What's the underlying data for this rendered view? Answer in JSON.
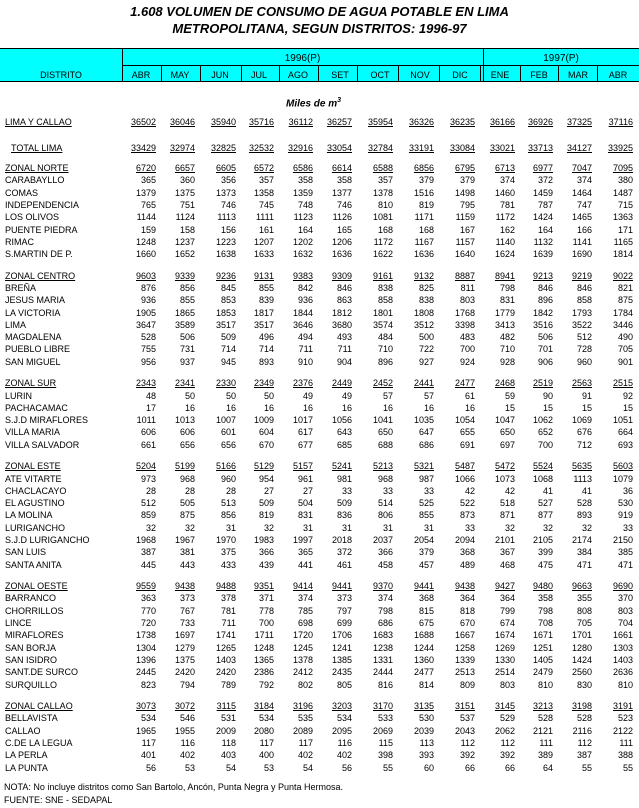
{
  "title": {
    "line1": "1.608 VOLUMEN DE CONSUMO DE AGUA POTABLE EN LIMA",
    "line2": "METROPOLITANA, SEGUN DISTRITOS: 1996-97"
  },
  "header": {
    "district": "DISTRITO",
    "year_1996": "1996(P)",
    "year_1997": "1997(P)",
    "months_1996": [
      "ABR",
      "MAY",
      "JUN",
      "JUL",
      "AGO",
      "SET",
      "OCT",
      "NOV",
      "DIC"
    ],
    "months_1997": [
      "ENE",
      "FEB",
      "MAR",
      "ABR"
    ]
  },
  "unit": {
    "text": "Miles de m",
    "superscript": "3"
  },
  "lima_callao": {
    "label": "LIMA  Y  CALLAO",
    "values": [
      36502,
      36046,
      35940,
      35716,
      36112,
      36257,
      35954,
      36326,
      36235,
      36166,
      36926,
      37325,
      37116
    ]
  },
  "total_lima": {
    "label": "TOTAL LIMA",
    "values": [
      33429,
      32974,
      32825,
      32532,
      32916,
      33054,
      32784,
      33191,
      33084,
      33021,
      33713,
      34127,
      33925
    ]
  },
  "groups": [
    {
      "name": "ZONAL NORTE",
      "values": [
        6720,
        6657,
        6605,
        6572,
        6586,
        6614,
        6588,
        6856,
        6795,
        6713,
        6977,
        7047,
        7095
      ],
      "rows": [
        {
          "label": "CARABAYLLO",
          "values": [
            365,
            360,
            356,
            357,
            358,
            358,
            357,
            379,
            379,
            374,
            372,
            374,
            380
          ]
        },
        {
          "label": "COMAS",
          "values": [
            1379,
            1375,
            1373,
            1358,
            1359,
            1377,
            1378,
            1516,
            1498,
            1460,
            1459,
            1464,
            1487
          ]
        },
        {
          "label": "INDEPENDENCIA",
          "values": [
            765,
            751,
            746,
            745,
            748,
            746,
            810,
            819,
            795,
            781,
            787,
            747,
            715
          ]
        },
        {
          "label": "LOS OLIVOS",
          "values": [
            1144,
            1124,
            1113,
            1111,
            1123,
            1126,
            1081,
            1171,
            1159,
            1172,
            1424,
            1465,
            1363
          ]
        },
        {
          "label": "PUENTE PIEDRA",
          "values": [
            159,
            158,
            156,
            161,
            164,
            165,
            168,
            168,
            167,
            162,
            164,
            166,
            171
          ]
        },
        {
          "label": "RIMAC",
          "values": [
            1248,
            1237,
            1223,
            1207,
            1202,
            1206,
            1172,
            1167,
            1157,
            1140,
            1132,
            1141,
            1165
          ]
        },
        {
          "label": "S.MARTIN DE P.",
          "values": [
            1660,
            1652,
            1638,
            1633,
            1632,
            1636,
            1622,
            1636,
            1640,
            1624,
            1639,
            1690,
            1814
          ]
        }
      ]
    },
    {
      "name": "ZONAL CENTRO",
      "values": [
        9603,
        9339,
        9236,
        9131,
        9383,
        9309,
        9161,
        9132,
        8887,
        8941,
        9213,
        9219,
        9022
      ],
      "rows": [
        {
          "label": "BREÑA",
          "values": [
            876,
            856,
            845,
            855,
            842,
            846,
            838,
            825,
            811,
            798,
            846,
            846,
            821
          ]
        },
        {
          "label": "JESUS MARIA",
          "values": [
            936,
            855,
            853,
            839,
            936,
            863,
            858,
            838,
            803,
            831,
            896,
            858,
            875
          ]
        },
        {
          "label": "LA VICTORIA",
          "values": [
            1905,
            1865,
            1853,
            1817,
            1844,
            1812,
            1801,
            1808,
            1768,
            1779,
            1842,
            1793,
            1784
          ]
        },
        {
          "label": "LIMA",
          "values": [
            3647,
            3589,
            3517,
            3517,
            3646,
            3680,
            3574,
            3512,
            3398,
            3413,
            3516,
            3522,
            3446
          ]
        },
        {
          "label": "MAGDALENA",
          "values": [
            528,
            506,
            509,
            496,
            494,
            493,
            484,
            500,
            483,
            482,
            506,
            512,
            490
          ]
        },
        {
          "label": "PUEBLO LIBRE",
          "values": [
            755,
            731,
            714,
            714,
            711,
            711,
            710,
            722,
            700,
            710,
            701,
            728,
            705
          ]
        },
        {
          "label": "SAN MIGUEL",
          "values": [
            956,
            937,
            945,
            893,
            910,
            904,
            896,
            927,
            924,
            928,
            906,
            960,
            901
          ]
        }
      ]
    },
    {
      "name": "ZONAL SUR",
      "values": [
        2343,
        2341,
        2330,
        2349,
        2376,
        2449,
        2452,
        2441,
        2477,
        2468,
        2519,
        2563,
        2515
      ],
      "rows": [
        {
          "label": "LURIN",
          "values": [
            48,
            50,
            50,
            50,
            49,
            49,
            57,
            57,
            61,
            59,
            90,
            91,
            92
          ]
        },
        {
          "label": "PACHACAMAC",
          "values": [
            17,
            16,
            16,
            16,
            16,
            16,
            16,
            16,
            16,
            15,
            15,
            15,
            15
          ]
        },
        {
          "label": "S.J.D MIRAFLORES",
          "values": [
            1011,
            1013,
            1007,
            1009,
            1017,
            1056,
            1041,
            1035,
            1054,
            1047,
            1062,
            1069,
            1051
          ]
        },
        {
          "label": "VILLA MARIA",
          "values": [
            606,
            606,
            601,
            604,
            617,
            643,
            650,
            647,
            655,
            650,
            652,
            676,
            664
          ]
        },
        {
          "label": "VILLA  SALVADOR",
          "values": [
            661,
            656,
            656,
            670,
            677,
            685,
            688,
            686,
            691,
            697,
            700,
            712,
            693
          ]
        }
      ]
    },
    {
      "name": "ZONAL ESTE",
      "values": [
        5204,
        5199,
        5166,
        5129,
        5157,
        5241,
        5213,
        5321,
        5487,
        5472,
        5524,
        5635,
        5603
      ],
      "rows": [
        {
          "label": "ATE VITARTE",
          "values": [
            973,
            968,
            960,
            954,
            961,
            981,
            968,
            987,
            1066,
            1073,
            1068,
            1113,
            1079
          ]
        },
        {
          "label": "CHACLACAYO",
          "values": [
            28,
            28,
            28,
            27,
            27,
            33,
            33,
            33,
            42,
            42,
            41,
            41,
            36
          ]
        },
        {
          "label": "EL AGUSTINO",
          "values": [
            512,
            505,
            513,
            509,
            504,
            509,
            514,
            525,
            522,
            518,
            527,
            528,
            530
          ]
        },
        {
          "label": "LA MOLINA",
          "values": [
            859,
            875,
            856,
            819,
            831,
            836,
            806,
            855,
            873,
            871,
            877,
            893,
            919
          ]
        },
        {
          "label": "LURIGANCHO",
          "values": [
            32,
            32,
            31,
            32,
            31,
            31,
            31,
            31,
            33,
            32,
            32,
            32,
            33
          ]
        },
        {
          "label": "S.J.D LURIGANCHO",
          "values": [
            1968,
            1967,
            1970,
            1983,
            1997,
            2018,
            2037,
            2054,
            2094,
            2101,
            2105,
            2174,
            2150
          ]
        },
        {
          "label": "SAN LUIS",
          "values": [
            387,
            381,
            375,
            366,
            365,
            372,
            366,
            379,
            368,
            367,
            399,
            384,
            385
          ]
        },
        {
          "label": "SANTA ANITA",
          "values": [
            445,
            443,
            433,
            439,
            441,
            461,
            458,
            457,
            489,
            468,
            475,
            471,
            471
          ]
        }
      ]
    },
    {
      "name": "ZONAL OESTE",
      "values": [
        9559,
        9438,
        9488,
        9351,
        9414,
        9441,
        9370,
        9441,
        9438,
        9427,
        9480,
        9663,
        9690
      ],
      "rows": [
        {
          "label": "BARRANCO",
          "values": [
            363,
            373,
            378,
            371,
            374,
            373,
            374,
            368,
            364,
            364,
            358,
            355,
            370
          ]
        },
        {
          "label": "CHORRILLOS",
          "values": [
            770,
            767,
            781,
            778,
            785,
            797,
            798,
            815,
            818,
            799,
            798,
            808,
            803
          ]
        },
        {
          "label": "LINCE",
          "values": [
            720,
            733,
            711,
            700,
            698,
            699,
            686,
            675,
            670,
            674,
            708,
            705,
            704
          ]
        },
        {
          "label": "MIRAFLORES",
          "values": [
            1738,
            1697,
            1741,
            1711,
            1720,
            1706,
            1683,
            1688,
            1667,
            1674,
            1671,
            1701,
            1661
          ]
        },
        {
          "label": "SAN BORJA",
          "values": [
            1304,
            1279,
            1265,
            1248,
            1245,
            1241,
            1238,
            1244,
            1258,
            1269,
            1251,
            1280,
            1303
          ]
        },
        {
          "label": "SAN ISIDRO",
          "values": [
            1396,
            1375,
            1403,
            1365,
            1378,
            1385,
            1331,
            1360,
            1339,
            1330,
            1405,
            1424,
            1403
          ]
        },
        {
          "label": "SANT.DE SURCO",
          "values": [
            2445,
            2420,
            2420,
            2386,
            2412,
            2435,
            2444,
            2477,
            2513,
            2514,
            2479,
            2560,
            2636
          ]
        },
        {
          "label": "SURQUILLO",
          "values": [
            823,
            794,
            789,
            792,
            802,
            805,
            816,
            814,
            809,
            803,
            810,
            830,
            810
          ]
        }
      ]
    },
    {
      "name": "ZONAL CALLAO",
      "values": [
        3073,
        3072,
        3115,
        3184,
        3196,
        3203,
        3170,
        3135,
        3151,
        3145,
        3213,
        3198,
        3191
      ],
      "rows": [
        {
          "label": "BELLAVISTA",
          "values": [
            534,
            546,
            531,
            534,
            535,
            534,
            533,
            530,
            537,
            529,
            528,
            528,
            523
          ]
        },
        {
          "label": "CALLAO",
          "values": [
            1965,
            1955,
            2009,
            2080,
            2089,
            2095,
            2069,
            2039,
            2043,
            2062,
            2121,
            2116,
            2122
          ]
        },
        {
          "label": "C.DE LA LEGUA",
          "values": [
            117,
            116,
            118,
            117,
            117,
            116,
            115,
            113,
            112,
            112,
            111,
            112,
            111
          ]
        },
        {
          "label": "LA PERLA",
          "values": [
            401,
            402,
            403,
            400,
            402,
            402,
            398,
            393,
            392,
            392,
            389,
            387,
            388
          ]
        },
        {
          "label": "LA PUNTA",
          "values": [
            56,
            53,
            54,
            53,
            54,
            56,
            55,
            60,
            66,
            66,
            64,
            55,
            55
          ]
        }
      ]
    }
  ],
  "notes": {
    "note": "NOTA: No incluye distritos como San Bartolo, Ancón, Punta Negra y Punta Hermosa.",
    "source": "FUENTE: SNE - SEDAPAL"
  }
}
